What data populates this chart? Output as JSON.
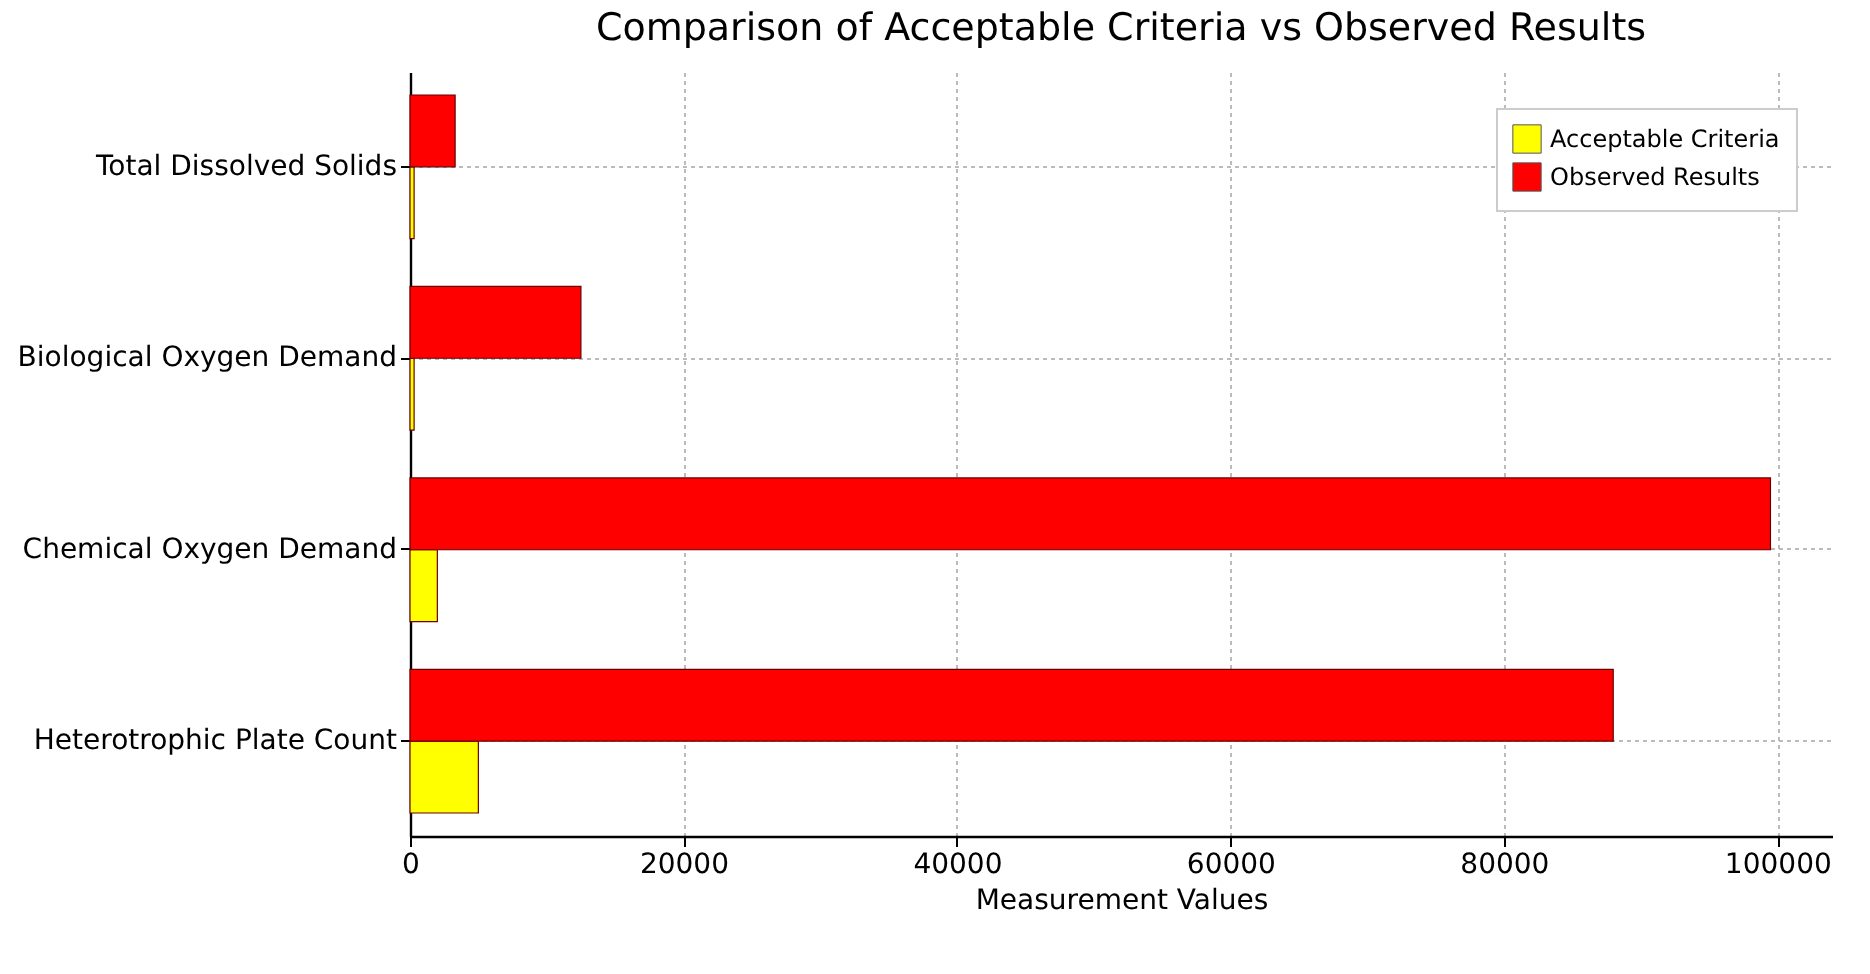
{
  "chart_data": {
    "type": "bar",
    "orientation": "horizontal",
    "title": "Comparison of Acceptable Criteria vs Observed Results",
    "xlabel": "Measurement Values",
    "categories": [
      "Total Dissolved Solids",
      "Biological Oxygen Demand",
      "Chemical Oxygen Demand",
      "Heterotrophic Plate Count"
    ],
    "series": [
      {
        "name": "Acceptable Criteria",
        "color": "#ffff00",
        "values": [
          300,
          300,
          2000,
          5000
        ]
      },
      {
        "name": "Observed Results",
        "color": "#ff0000",
        "values": [
          3300,
          12500,
          99500,
          88000
        ]
      }
    ],
    "xlim": [
      0,
      104000
    ],
    "xticks": [
      0,
      20000,
      40000,
      60000,
      80000,
      100000
    ],
    "grid": true,
    "legend": "top right"
  }
}
